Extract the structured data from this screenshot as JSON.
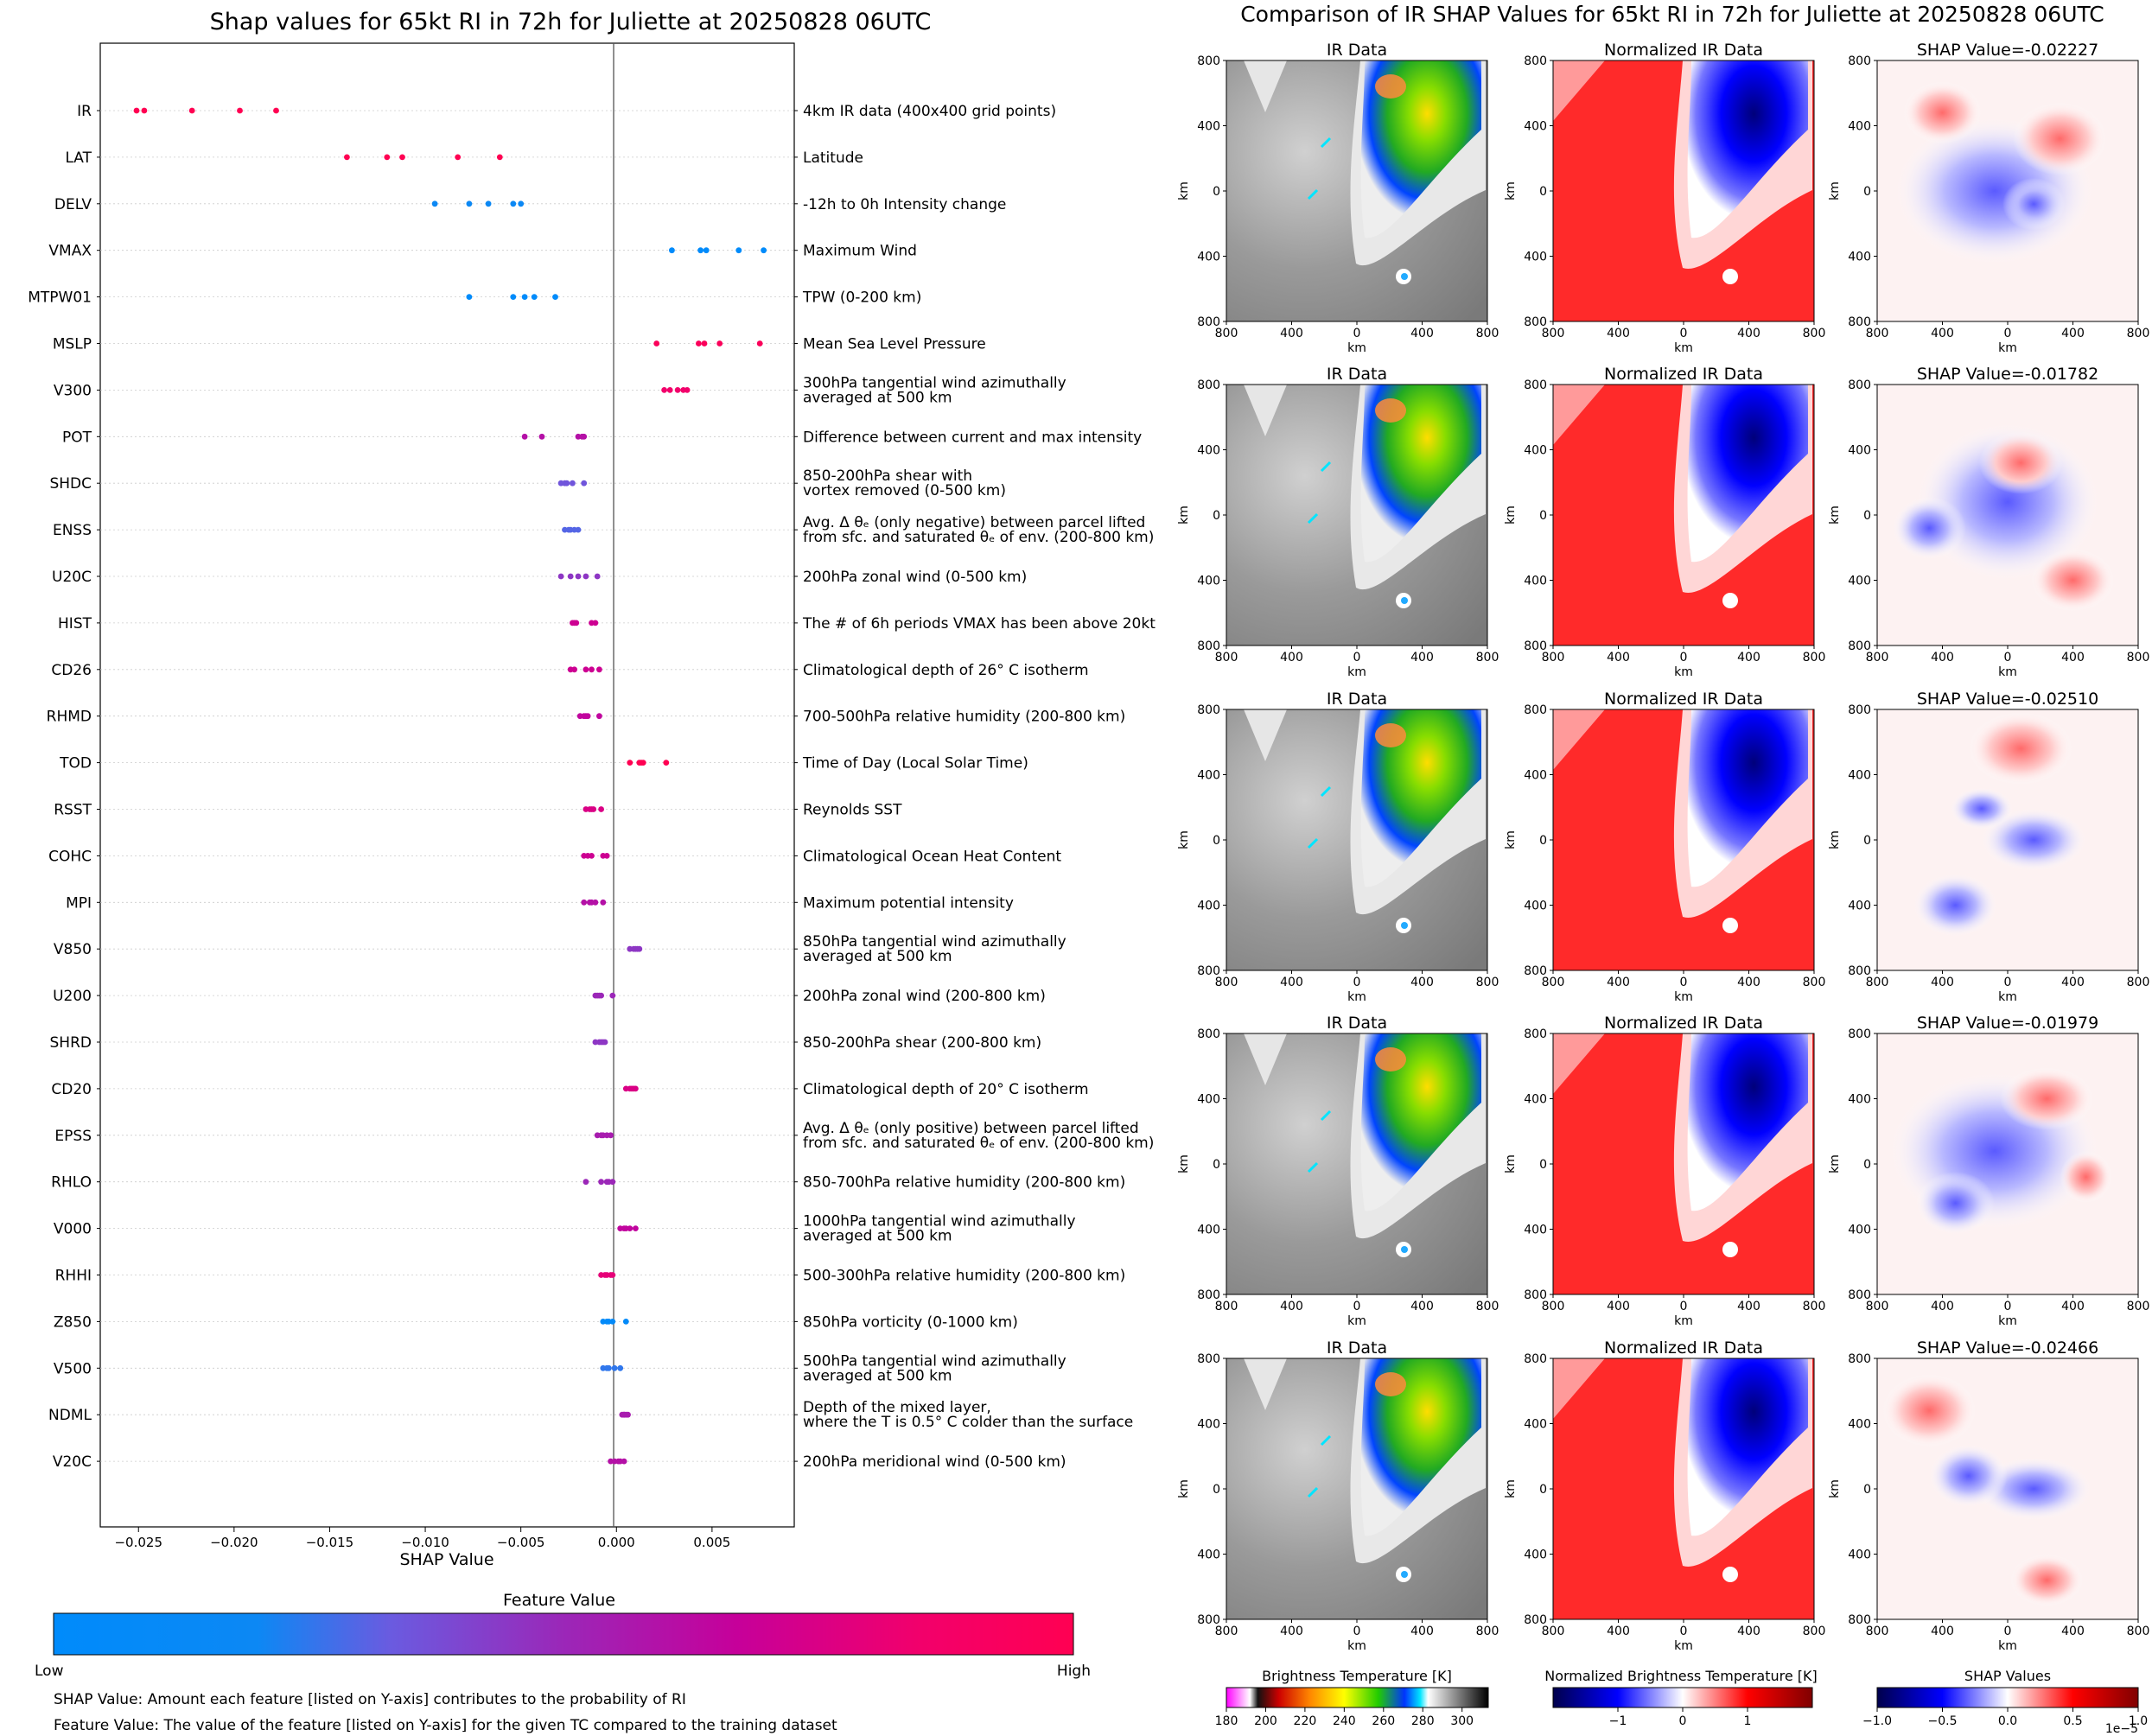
{
  "left_chart": {
    "title": "Shap values for 65kt RI in 72h for Juliette at 20250828 06UTC",
    "xlabel": "SHAP Value",
    "colorbar_title": "Feature Value",
    "colorbar_low": "Low",
    "colorbar_high": "High",
    "note1": "SHAP Value: Amount each feature [listed on Y-axis] contributes to the probability of RI",
    "note2": "Feature Value: The value of the feature [listed on Y-axis] for the given TC compared to the training dataset",
    "low_color": "#008bfb",
    "high_color": "#ff0052"
  },
  "right_panel": {
    "title": "Comparison of IR SHAP Values for 65kt RI in 72h for Juliette at 20250828 06UTC",
    "col_titles": [
      "IR Data",
      "Normalized IR Data"
    ],
    "shap_titles": [
      "SHAP Value=-0.02227",
      "SHAP Value=-0.01782",
      "SHAP Value=-0.02510",
      "SHAP Value=-0.01979",
      "SHAP Value=-0.02466"
    ],
    "axis_unit": "km",
    "tick_labels": [
      "800",
      "400",
      "0",
      "400",
      "800"
    ],
    "colorbars": [
      {
        "title": "Brightness Temperature [K]",
        "ticks": [
          "180",
          "200",
          "220",
          "240",
          "260",
          "280",
          "300"
        ]
      },
      {
        "title": "Normalized Brightness Temperature [K]",
        "ticks": [
          "−1",
          "0",
          "1"
        ]
      },
      {
        "title": "SHAP Values",
        "ticks": [
          "−1.0",
          "−0.5",
          "0.0",
          "0.5",
          "1.0"
        ],
        "exponent": "1e−5"
      }
    ]
  },
  "chart_data": {
    "type": "scatter",
    "title": "Shap values for 65kt RI in 72h for Juliette at 20250828 06UTC",
    "xlabel": "SHAP Value",
    "xlim": [
      -0.027,
      0.0093
    ],
    "xticks": [
      -0.025,
      -0.02,
      -0.015,
      -0.01,
      -0.005,
      0.0,
      0.005
    ],
    "xtick_labels": [
      "−0.025",
      "−0.020",
      "−0.015",
      "−0.010",
      "−0.005",
      "0.000",
      "0.005"
    ],
    "features": [
      {
        "name": "IR",
        "desc": [
          "4km IR data (400x400 grid points)"
        ],
        "shap": [
          -0.0251,
          -0.0247,
          -0.0222,
          -0.0197,
          -0.0178
        ],
        "fv": [
          1,
          1,
          1,
          1,
          1
        ]
      },
      {
        "name": "LAT",
        "desc": [
          "Latitude"
        ],
        "shap": [
          -0.0141,
          -0.012,
          -0.0112,
          -0.0083,
          -0.0061
        ],
        "fv": [
          1,
          1,
          1,
          1,
          1
        ]
      },
      {
        "name": "DELV",
        "desc": [
          "-12h to 0h Intensity change"
        ],
        "shap": [
          -0.0095,
          -0.0077,
          -0.0067,
          -0.0054,
          -0.005
        ],
        "fv": [
          0.2,
          0.2,
          0.2,
          0.2,
          0.2
        ]
      },
      {
        "name": "VMAX",
        "desc": [
          "Maximum Wind"
        ],
        "shap": [
          0.0029,
          0.0044,
          0.0047,
          0.0064,
          0.0077
        ],
        "fv": [
          0,
          0,
          0,
          0,
          0
        ]
      },
      {
        "name": "MTPW01",
        "desc": [
          "TPW (0-200 km)"
        ],
        "shap": [
          -0.0077,
          -0.0054,
          -0.0048,
          -0.0043,
          -0.0032
        ],
        "fv": [
          0,
          0,
          0,
          0,
          0
        ]
      },
      {
        "name": "MSLP",
        "desc": [
          "Mean Sea Level Pressure"
        ],
        "shap": [
          0.0021,
          0.0043,
          0.0046,
          0.0054,
          0.0075
        ],
        "fv": [
          0.95,
          0.95,
          0.95,
          0.95,
          0.95
        ]
      },
      {
        "name": "V300",
        "desc": [
          "300hPa tangential wind azimuthally",
          "averaged at 500 km"
        ],
        "shap": [
          0.0025,
          0.0028,
          0.0032,
          0.0035,
          0.0037
        ],
        "fv": [
          0.85,
          0.85,
          0.85,
          0.85,
          0.85
        ]
      },
      {
        "name": "POT",
        "desc": [
          "Difference between current and max intensity"
        ],
        "shap": [
          -0.0048,
          -0.0039,
          -0.002,
          -0.0018,
          -0.0017
        ],
        "fv": [
          0.6,
          0.6,
          0.6,
          0.6,
          0.6
        ]
      },
      {
        "name": "SHDC",
        "desc": [
          "850-200hPa shear with",
          "vortex removed (0-500 km)"
        ],
        "shap": [
          -0.0029,
          -0.0026,
          -0.0023,
          -0.0017,
          -0.0027
        ],
        "fv": [
          0.35,
          0.35,
          0.35,
          0.35,
          0.35
        ]
      },
      {
        "name": "ENSS",
        "desc": [
          "Avg. Δ θₑ (only negative) between parcel lifted",
          "from sfc. and saturated θₑ of env. (200-800 km)"
        ],
        "shap": [
          -0.0027,
          -0.0025,
          -0.0022,
          -0.002,
          -0.0024
        ],
        "fv": [
          0.3,
          0.3,
          0.3,
          0.3,
          0.3
        ]
      },
      {
        "name": "U20C",
        "desc": [
          "200hPa zonal wind (0-500 km)"
        ],
        "shap": [
          -0.0029,
          -0.0024,
          -0.0016,
          -0.001,
          -0.002
        ],
        "fv": [
          0.45,
          0.45,
          0.45,
          0.45,
          0.45
        ]
      },
      {
        "name": "HIST",
        "desc": [
          "The # of 6h periods VMAX has been above 20kt"
        ],
        "shap": [
          -0.0023,
          -0.0021,
          -0.0013,
          -0.0011,
          -0.0022
        ],
        "fv": [
          0.7,
          0.7,
          0.7,
          0.7,
          0.7
        ]
      },
      {
        "name": "CD26",
        "desc": [
          "Climatological depth of 26° C isotherm"
        ],
        "shap": [
          -0.0024,
          -0.0022,
          -0.0016,
          -0.0013,
          -0.0009
        ],
        "fv": [
          0.7,
          0.7,
          0.7,
          0.7,
          0.7
        ]
      },
      {
        "name": "RHMD",
        "desc": [
          "700-500hPa relative humidity (200-800 km)"
        ],
        "shap": [
          -0.0019,
          -0.0017,
          -0.0015,
          -0.0009,
          -0.0016
        ],
        "fv": [
          0.65,
          0.65,
          0.65,
          0.65,
          0.65
        ]
      },
      {
        "name": "TOD",
        "desc": [
          "Time of Day (Local Solar Time)"
        ],
        "shap": [
          0.0007,
          0.0012,
          0.0014,
          0.0026,
          0.0013
        ],
        "fv": [
          1,
          1,
          1,
          1,
          1
        ]
      },
      {
        "name": "RSST",
        "desc": [
          "Reynolds SST"
        ],
        "shap": [
          -0.0016,
          -0.0014,
          -0.0012,
          -0.0008,
          -0.0013
        ],
        "fv": [
          0.75,
          0.75,
          0.75,
          0.75,
          0.75
        ]
      },
      {
        "name": "COHC",
        "desc": [
          "Climatological Ocean Heat Content"
        ],
        "shap": [
          -0.0017,
          -0.0015,
          -0.0013,
          -0.0005,
          -0.0007
        ],
        "fv": [
          0.7,
          0.7,
          0.7,
          0.7,
          0.7
        ]
      },
      {
        "name": "MPI",
        "desc": [
          "Maximum potential intensity"
        ],
        "shap": [
          -0.0017,
          -0.0014,
          -0.0011,
          -0.0007,
          -0.0013
        ],
        "fv": [
          0.6,
          0.6,
          0.6,
          0.6,
          0.6
        ]
      },
      {
        "name": "V850",
        "desc": [
          "850hPa tangential wind azimuthally",
          "averaged at 500 km"
        ],
        "shap": [
          0.0007,
          0.0009,
          0.0011,
          0.0012,
          0.001
        ],
        "fv": [
          0.45,
          0.45,
          0.45,
          0.45,
          0.45
        ]
      },
      {
        "name": "U200",
        "desc": [
          "200hPa zonal wind (200-800 km)"
        ],
        "shap": [
          -0.0011,
          -0.0008,
          -0.0002,
          -0.0009,
          -0.001
        ],
        "fv": [
          0.5,
          0.5,
          0.5,
          0.5,
          0.5
        ]
      },
      {
        "name": "SHRD",
        "desc": [
          "850-200hPa shear (200-800 km)"
        ],
        "shap": [
          -0.0011,
          -0.0009,
          -0.0008,
          -0.0006,
          -0.0007
        ],
        "fv": [
          0.45,
          0.45,
          0.45,
          0.45,
          0.45
        ]
      },
      {
        "name": "CD20",
        "desc": [
          "Climatological depth of 20° C isotherm"
        ],
        "shap": [
          0.0005,
          0.0007,
          0.0008,
          0.001,
          0.0009
        ],
        "fv": [
          0.75,
          0.75,
          0.75,
          0.75,
          0.75
        ]
      },
      {
        "name": "EPSS",
        "desc": [
          "Avg. Δ θₑ (only positive) between parcel lifted",
          "from sfc. and saturated θₑ of env. (200-800 km)"
        ],
        "shap": [
          -0.001,
          -0.0008,
          -0.0005,
          -0.0003,
          -0.0007
        ],
        "fv": [
          0.55,
          0.55,
          0.55,
          0.55,
          0.55
        ]
      },
      {
        "name": "RHLO",
        "desc": [
          "850-700hPa relative humidity (200-800 km)"
        ],
        "shap": [
          -0.0016,
          -0.0008,
          -0.0005,
          -0.0002,
          -0.0004
        ],
        "fv": [
          0.5,
          0.5,
          0.5,
          0.5,
          0.5
        ]
      },
      {
        "name": "V000",
        "desc": [
          "1000hPa tangential wind azimuthally",
          "averaged at 500 km"
        ],
        "shap": [
          0.0002,
          0.0005,
          0.0007,
          0.001,
          0.0004
        ],
        "fv": [
          0.65,
          0.65,
          0.65,
          0.65,
          0.65
        ]
      },
      {
        "name": "RHHI",
        "desc": [
          "500-300hPa relative humidity (200-800 km)"
        ],
        "shap": [
          -0.0008,
          -0.0005,
          -0.0003,
          -0.0002,
          -0.0006
        ],
        "fv": [
          0.8,
          0.8,
          0.8,
          0.8,
          0.8
        ]
      },
      {
        "name": "Z850",
        "desc": [
          "850hPa vorticity (0-1000 km)"
        ],
        "shap": [
          -0.0007,
          -0.0005,
          -0.0002,
          0.0005,
          -0.0004
        ],
        "fv": [
          0.05,
          0.05,
          0.05,
          0.05,
          0.05
        ]
      },
      {
        "name": "V500",
        "desc": [
          "500hPa tangential wind azimuthally",
          "averaged at 500 km"
        ],
        "shap": [
          -0.0007,
          -0.0004,
          -0.0001,
          0.0002,
          -0.0005
        ],
        "fv": [
          0.25,
          0.25,
          0.25,
          0.25,
          0.25
        ]
      },
      {
        "name": "NDML",
        "desc": [
          "Depth of the mixed layer,",
          "where the T is 0.5° C colder than the surface"
        ],
        "shap": [
          0.0003,
          0.0004,
          0.0005,
          0.0006,
          0.0004
        ],
        "fv": [
          0.55,
          0.55,
          0.55,
          0.55,
          0.55
        ]
      },
      {
        "name": "V20C",
        "desc": [
          "200hPa meridional wind (0-500 km)"
        ],
        "shap": [
          -0.0003,
          -0.0001,
          0.0001,
          0.0004,
          0.0002
        ],
        "fv": [
          0.6,
          0.6,
          0.6,
          0.6,
          0.6
        ]
      }
    ]
  }
}
